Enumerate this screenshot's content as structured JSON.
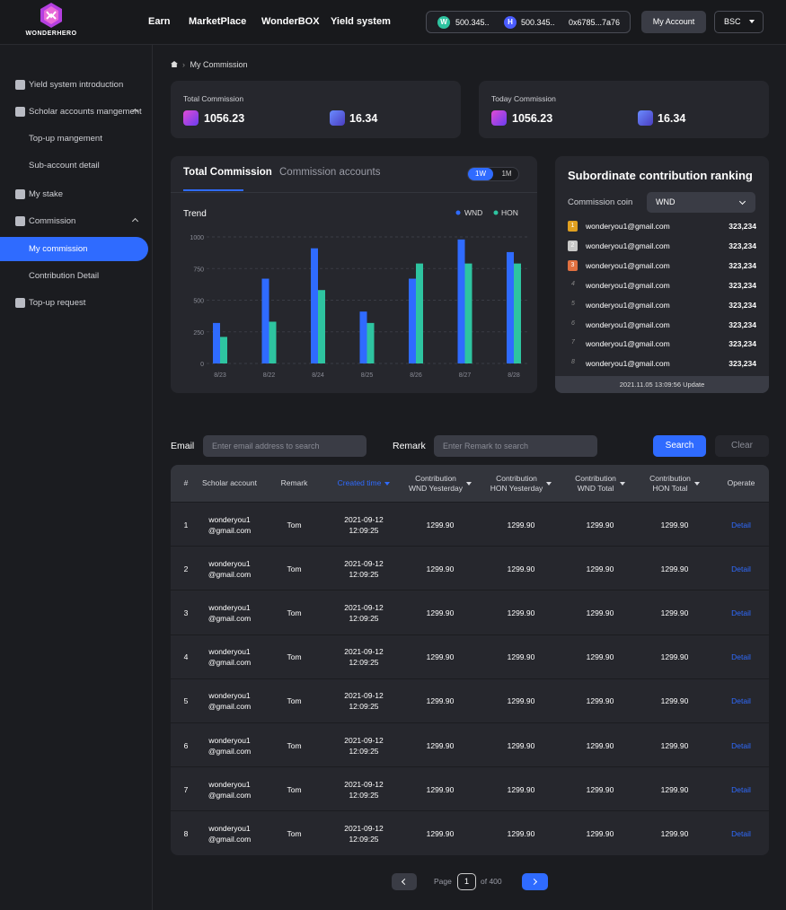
{
  "header": {
    "logo_text": "WONDERHERO",
    "nav": [
      "Earn",
      "MarketPlace",
      "WonderBOX",
      "Yield system"
    ],
    "wallet": {
      "wnd_symbol": "W",
      "wnd_balance": "500.345..",
      "hon_symbol": "H",
      "hon_balance": "500.345..",
      "address": "0x6785...7a76"
    },
    "my_account": "My Account",
    "network": "BSC"
  },
  "sidebar": {
    "items": [
      {
        "label": "Yield system introduction",
        "icon": "document-icon"
      },
      {
        "label": "Scholar accounts mangement",
        "icon": "scholar-icon",
        "expanded": true
      },
      {
        "label": "Top-up mangement",
        "sub": true
      },
      {
        "label": "Sub-account detail",
        "sub": true
      },
      {
        "label": "My stake",
        "icon": "wallet-icon"
      },
      {
        "label": "Commission",
        "icon": "commission-icon",
        "expanded": true
      },
      {
        "label": "My commission",
        "sub": true,
        "active": true
      },
      {
        "label": "Contribution Detail",
        "sub": true
      },
      {
        "label": "Top-up request",
        "icon": "topup-icon"
      }
    ]
  },
  "breadcrumb": {
    "current": "My Commission"
  },
  "stats": {
    "total": {
      "title": "Total Commission",
      "wnd": "1056.23",
      "hon": "16.34"
    },
    "today": {
      "title": "Today Commission",
      "wnd": "1056.23",
      "hon": "16.34"
    }
  },
  "chart_panel": {
    "tabs": [
      "Total Commission",
      "Commission accounts"
    ],
    "periods": [
      "1W",
      "1M"
    ],
    "active_period": "1W"
  },
  "chart_data": {
    "type": "bar",
    "title": "Trend",
    "categories": [
      "8/23",
      "8/22",
      "8/24",
      "8/25",
      "8/26",
      "8/27",
      "8/28"
    ],
    "series": [
      {
        "name": "WND",
        "color": "#2f6bff",
        "values": [
          320,
          670,
          910,
          410,
          670,
          980,
          880
        ]
      },
      {
        "name": "HON",
        "color": "#2ec4a0",
        "values": [
          210,
          330,
          580,
          320,
          790,
          790,
          790
        ]
      }
    ],
    "ylim": [
      0,
      1000
    ],
    "yticks": [
      "0",
      "250",
      "500",
      "750",
      "1000"
    ],
    "grid": true,
    "legend": "top-right"
  },
  "ranking": {
    "title": "Subordinate contribution ranking",
    "coin_label": "Commission coin",
    "coin_value": "WND",
    "rows": [
      {
        "rank": "1",
        "email": "wonderyou1@gmail.com",
        "score": "323,234"
      },
      {
        "rank": "2",
        "email": "wonderyou1@gmail.com",
        "score": "323,234"
      },
      {
        "rank": "3",
        "email": "wonderyou1@gmail.com",
        "score": "323,234"
      },
      {
        "rank": "4",
        "email": "wonderyou1@gmail.com",
        "score": "323,234"
      },
      {
        "rank": "5",
        "email": "wonderyou1@gmail.com",
        "score": "323,234"
      },
      {
        "rank": "6",
        "email": "wonderyou1@gmail.com",
        "score": "323,234"
      },
      {
        "rank": "7",
        "email": "wonderyou1@gmail.com",
        "score": "323,234"
      },
      {
        "rank": "8",
        "email": "wonderyou1@gmail.com",
        "score": "323,234"
      }
    ],
    "updated": "2021.11.05 13:09:56 Update"
  },
  "filters": {
    "email_label": "Email",
    "email_placeholder": "Enter email address to search",
    "remark_label": "Remark",
    "remark_placeholder": "Enter Remark to search",
    "search_label": "Search",
    "clear_label": "Clear"
  },
  "table": {
    "headers": [
      "#",
      "Scholar account",
      "Remark",
      "Created time",
      "Contribution\nWND Yesterday",
      "Contribution\nHON Yesterday",
      "Contribution\nWND Total",
      "Contribution\nHON Total",
      "Operate"
    ],
    "rows": [
      {
        "num": "1",
        "account": "wonderyou1\n@gmail.com",
        "remark": "Tom",
        "created": "2021-09-12\n12:09:25",
        "wnd_y": "1299.90",
        "hon_y": "1299.90",
        "wnd_t": "1299.90",
        "hon_t": "1299.90",
        "op": "Detail"
      },
      {
        "num": "2",
        "account": "wonderyou1\n@gmail.com",
        "remark": "Tom",
        "created": "2021-09-12\n12:09:25",
        "wnd_y": "1299.90",
        "hon_y": "1299.90",
        "wnd_t": "1299.90",
        "hon_t": "1299.90",
        "op": "Detail"
      },
      {
        "num": "3",
        "account": "wonderyou1\n@gmail.com",
        "remark": "Tom",
        "created": "2021-09-12\n12:09:25",
        "wnd_y": "1299.90",
        "hon_y": "1299.90",
        "wnd_t": "1299.90",
        "hon_t": "1299.90",
        "op": "Detail"
      },
      {
        "num": "4",
        "account": "wonderyou1\n@gmail.com",
        "remark": "Tom",
        "created": "2021-09-12\n12:09:25",
        "wnd_y": "1299.90",
        "hon_y": "1299.90",
        "wnd_t": "1299.90",
        "hon_t": "1299.90",
        "op": "Detail"
      },
      {
        "num": "5",
        "account": "wonderyou1\n@gmail.com",
        "remark": "Tom",
        "created": "2021-09-12\n12:09:25",
        "wnd_y": "1299.90",
        "hon_y": "1299.90",
        "wnd_t": "1299.90",
        "hon_t": "1299.90",
        "op": "Detail"
      },
      {
        "num": "6",
        "account": "wonderyou1\n@gmail.com",
        "remark": "Tom",
        "created": "2021-09-12\n12:09:25",
        "wnd_y": "1299.90",
        "hon_y": "1299.90",
        "wnd_t": "1299.90",
        "hon_t": "1299.90",
        "op": "Detail"
      },
      {
        "num": "7",
        "account": "wonderyou1\n@gmail.com",
        "remark": "Tom",
        "created": "2021-09-12\n12:09:25",
        "wnd_y": "1299.90",
        "hon_y": "1299.90",
        "wnd_t": "1299.90",
        "hon_t": "1299.90",
        "op": "Detail"
      },
      {
        "num": "8",
        "account": "wonderyou1\n@gmail.com",
        "remark": "Tom",
        "created": "2021-09-12\n12:09:25",
        "wnd_y": "1299.90",
        "hon_y": "1299.90",
        "wnd_t": "1299.90",
        "hon_t": "1299.90",
        "op": "Detail"
      }
    ]
  },
  "pagination": {
    "page_label": "Page",
    "current": "1",
    "of_label": "of 400"
  },
  "colors": {
    "accent": "#2f6bff",
    "hon": "#2ec4a0",
    "panel": "#26272d",
    "background": "#1b1c20"
  }
}
